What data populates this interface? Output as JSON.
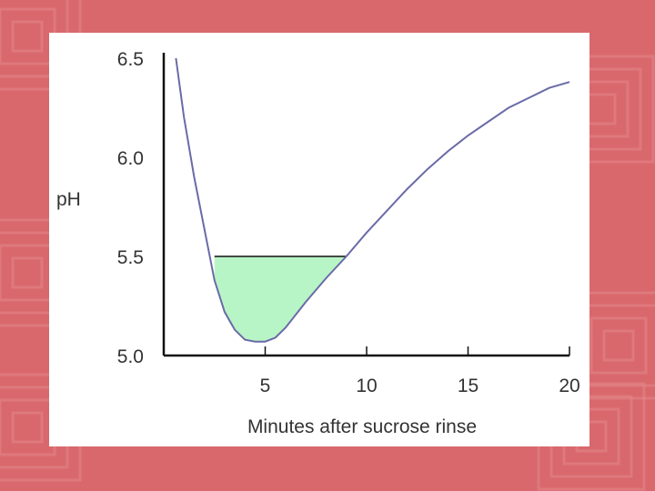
{
  "slide": {
    "background_color": "#d9686c",
    "pattern_color": "#e48a8c",
    "panel_color": "#ffffff"
  },
  "chart_data": {
    "type": "line",
    "title": "",
    "xlabel": "Minutes after sucrose rinse",
    "ylabel": "pH",
    "xlim": [
      0,
      20
    ],
    "ylim": [
      5.0,
      6.5
    ],
    "x_ticks": [
      5,
      10,
      15,
      20
    ],
    "x_tick_labels": [
      "5",
      "10",
      "15",
      "20"
    ],
    "y_ticks": [
      5.0,
      5.5,
      6.0,
      6.5
    ],
    "y_tick_labels": [
      "5.0",
      "5.5",
      "6.0",
      "6.5"
    ],
    "grid": false,
    "series": [
      {
        "color": "#6a6aa8",
        "x": [
          0.6,
          1.0,
          1.5,
          2.0,
          2.5,
          3.0,
          3.5,
          4.0,
          4.5,
          5.0,
          5.5,
          6.0,
          7.0,
          8.0,
          9.0,
          10.0,
          11.0,
          12.0,
          13.0,
          14.0,
          15.0,
          16.0,
          17.0,
          18.0,
          19.0,
          20.0
        ],
        "y": [
          6.5,
          6.2,
          5.9,
          5.64,
          5.38,
          5.22,
          5.13,
          5.08,
          5.07,
          5.07,
          5.09,
          5.14,
          5.27,
          5.39,
          5.5,
          5.62,
          5.73,
          5.84,
          5.94,
          6.03,
          6.11,
          6.18,
          6.25,
          6.3,
          6.35,
          6.38
        ]
      }
    ],
    "threshold": {
      "y": 5.5,
      "x_range": [
        2.5,
        9.0
      ],
      "line_color": "#111111",
      "fill_color": "#b8f5c6"
    }
  }
}
